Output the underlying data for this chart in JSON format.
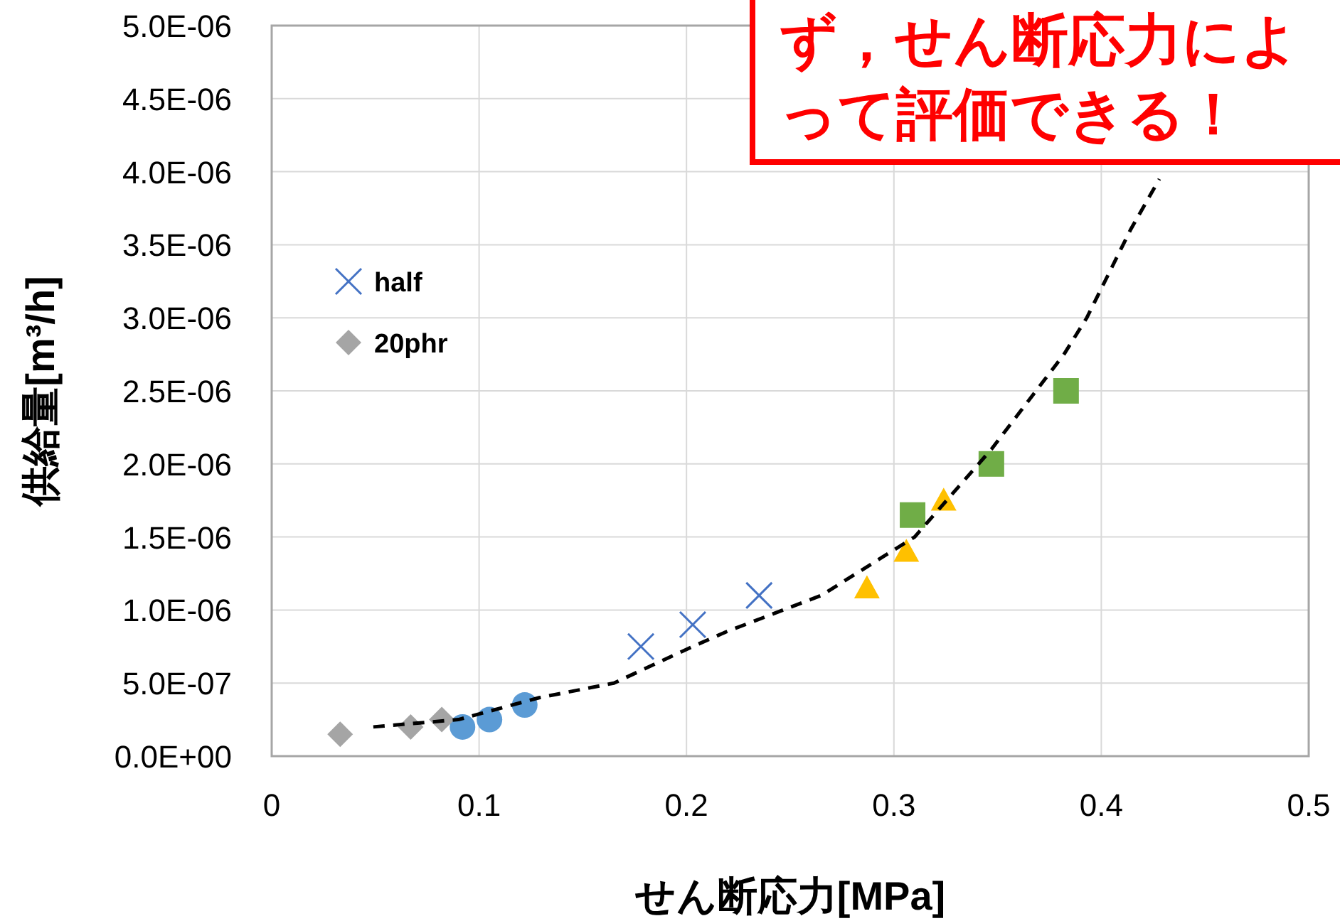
{
  "chart_data": {
    "type": "scatter",
    "xlabel": "せん断応力[MPa]",
    "ylabel": "供給量[m³/h]",
    "annotations": [
      "ず，せん断応力によって評価できる！"
    ],
    "xlim": [
      0,
      0.5
    ],
    "xticks": [
      0,
      0.1,
      0.2,
      0.3,
      0.4,
      0.5
    ],
    "ylim": [
      0,
      5e-06
    ],
    "yticks": [
      {
        "value": 0,
        "label": "0.0E+00"
      },
      {
        "value": 5e-07,
        "label": "5.0E-07"
      },
      {
        "value": 1e-06,
        "label": "1.0E-06"
      },
      {
        "value": 1.5e-06,
        "label": "1.5E-06"
      },
      {
        "value": 2e-06,
        "label": "2.0E-06"
      },
      {
        "value": 2.5e-06,
        "label": "2.5E-06"
      },
      {
        "value": 3e-06,
        "label": "3.0E-06"
      },
      {
        "value": 3.5e-06,
        "label": "3.5E-06"
      },
      {
        "value": 4e-06,
        "label": "4.0E-06"
      },
      {
        "value": 4.5e-06,
        "label": "4.5E-06"
      },
      {
        "value": 5e-06,
        "label": "5.0E-06"
      }
    ],
    "grid": true,
    "legend": "top left",
    "series": [
      {
        "color": "#5b9bd5",
        "marker": "circle",
        "x": [
          0.092,
          0.105,
          0.122
        ],
        "values": [
          2e-07,
          2.5e-07,
          3.5e-07
        ]
      },
      {
        "color": "#ffc000",
        "marker": "triangle",
        "x": [
          0.287,
          0.306,
          0.324
        ],
        "values": [
          1.15e-06,
          1.4e-06,
          1.75e-06
        ]
      },
      {
        "color": "#70ad47",
        "marker": "square",
        "x": [
          0.309,
          0.347,
          0.383
        ],
        "values": [
          1.65e-06,
          2e-06,
          2.5e-06
        ]
      },
      {
        "name": "half",
        "color": "#4472c4",
        "marker": "cross",
        "x": [
          0.178,
          0.203,
          0.235
        ],
        "values": [
          7.5e-07,
          9e-07,
          1.1e-06
        ]
      },
      {
        "name": "20phr",
        "color": "#a5a5a5",
        "marker": "diamond",
        "x": [
          0.033,
          0.067,
          0.082
        ],
        "values": [
          1.5e-07,
          2e-07,
          2.5e-07
        ]
      },
      {
        "type": "line",
        "color": "#000000",
        "line_style": "dashed",
        "x": [
          0.049,
          0.09,
          0.129,
          0.165,
          0.203,
          0.219,
          0.265,
          0.31,
          0.347,
          0.382,
          0.393,
          0.414,
          0.428
        ],
        "values": [
          2e-07,
          2.5e-07,
          4e-07,
          5e-07,
          7.5e-07,
          8.5e-07,
          1.1e-06,
          1.5e-06,
          2.1e-06,
          2.75e-06,
          3e-06,
          3.6e-06,
          3.95e-06
        ]
      }
    ]
  }
}
